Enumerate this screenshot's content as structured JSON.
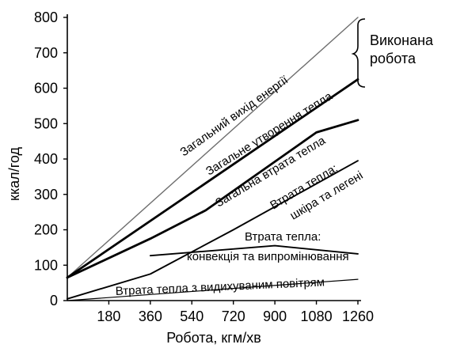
{
  "chart_data": {
    "type": "line",
    "xlabel": "Робота, кгм/хв",
    "ylabel": "ккал/год",
    "xlim": [
      0,
      1260
    ],
    "ylim": [
      0,
      800
    ],
    "x_ticks": [
      180,
      360,
      540,
      720,
      900,
      1080,
      1260
    ],
    "x_tick_labels": [
      "180",
      "360",
      "540",
      "720",
      "900",
      "1080",
      "1260"
    ],
    "y_ticks": [
      0,
      100,
      200,
      300,
      400,
      500,
      600,
      700,
      800
    ],
    "y_tick_labels": [
      "0",
      "100",
      "200",
      "300",
      "400",
      "500",
      "600",
      "700",
      "800"
    ],
    "grid": false,
    "series": [
      {
        "name": "Загальний вихід енергії",
        "style": "thin-gray",
        "x": [
          0,
          1260
        ],
        "y": [
          65,
          800
        ]
      },
      {
        "name": "Загальне утворення тепла",
        "style": "bold",
        "x": [
          0,
          1260
        ],
        "y": [
          65,
          625
        ]
      },
      {
        "name": "Загальна втрата тепла",
        "style": "bold",
        "x": [
          0,
          360,
          600,
          1080,
          1260
        ],
        "y": [
          65,
          175,
          255,
          475,
          510
        ]
      },
      {
        "name": "Втрата тепла: шкіра та легені",
        "style": "medium",
        "x": [
          0,
          360,
          720,
          1260
        ],
        "y": [
          5,
          75,
          200,
          395
        ]
      },
      {
        "name": "Втрата тепла: конвекція та випромінювання",
        "style": "medium",
        "x": [
          360,
          900,
          1260
        ],
        "y": [
          127,
          155,
          132
        ]
      },
      {
        "name": "Втрата тепла з видихуваним повітрям",
        "style": "thin",
        "x": [
          0,
          1260
        ],
        "y": [
          0,
          60
        ]
      }
    ],
    "annotations": {
      "work_done_line1": "Виконана",
      "work_done_line2": "робота",
      "skin_line1": "Втрата тепла:",
      "skin_line2": "шкіра та легені",
      "conv_line1": "Втрата тепла:",
      "conv_line2": "конвекція та випромінювання",
      "exhaled": "Втрата тепла з видихуваним повітрям",
      "total_output": "Загальний вихід енергії",
      "total_production": "Загальне утворення тепла",
      "total_loss": "Загальна втрата тепла"
    },
    "colors": {
      "axis": "#000000",
      "bold_line": "#000000",
      "gray_line": "#6e6e6e"
    }
  }
}
